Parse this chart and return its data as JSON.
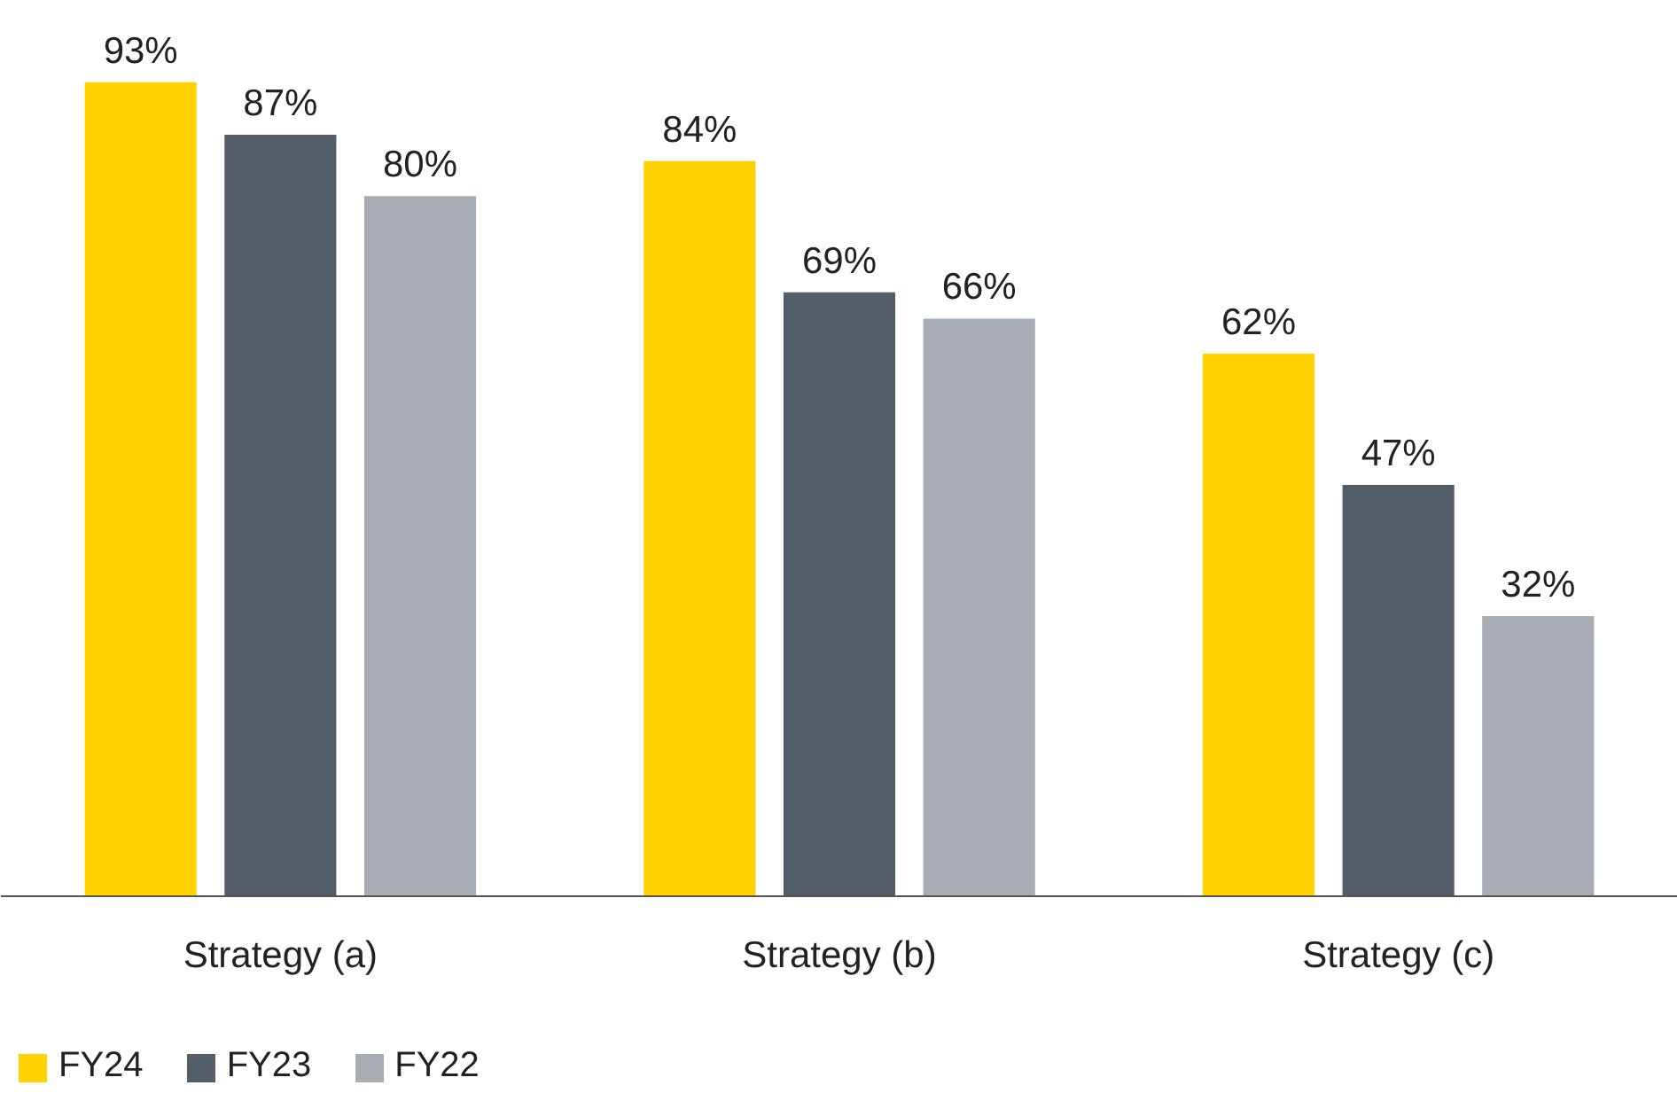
{
  "chart_data": {
    "type": "bar",
    "categories": [
      "Strategy (a)",
      "Strategy (b)",
      "Strategy (c)"
    ],
    "series": [
      {
        "name": "FY24",
        "color": "#ffd200",
        "values": [
          93,
          84,
          62
        ],
        "value_labels": [
          "93%",
          "84%",
          "62%"
        ]
      },
      {
        "name": "FY23",
        "color": "#545e69",
        "values": [
          87,
          69,
          47
        ],
        "value_labels": [
          "87%",
          "69%",
          "47%"
        ]
      },
      {
        "name": "FY22",
        "color": "#a7adb3",
        "values": [
          80,
          66,
          32
        ],
        "value_labels": [
          "80%",
          "66%",
          "32%"
        ]
      }
    ],
    "grid": false,
    "legend": "bottom left"
  }
}
